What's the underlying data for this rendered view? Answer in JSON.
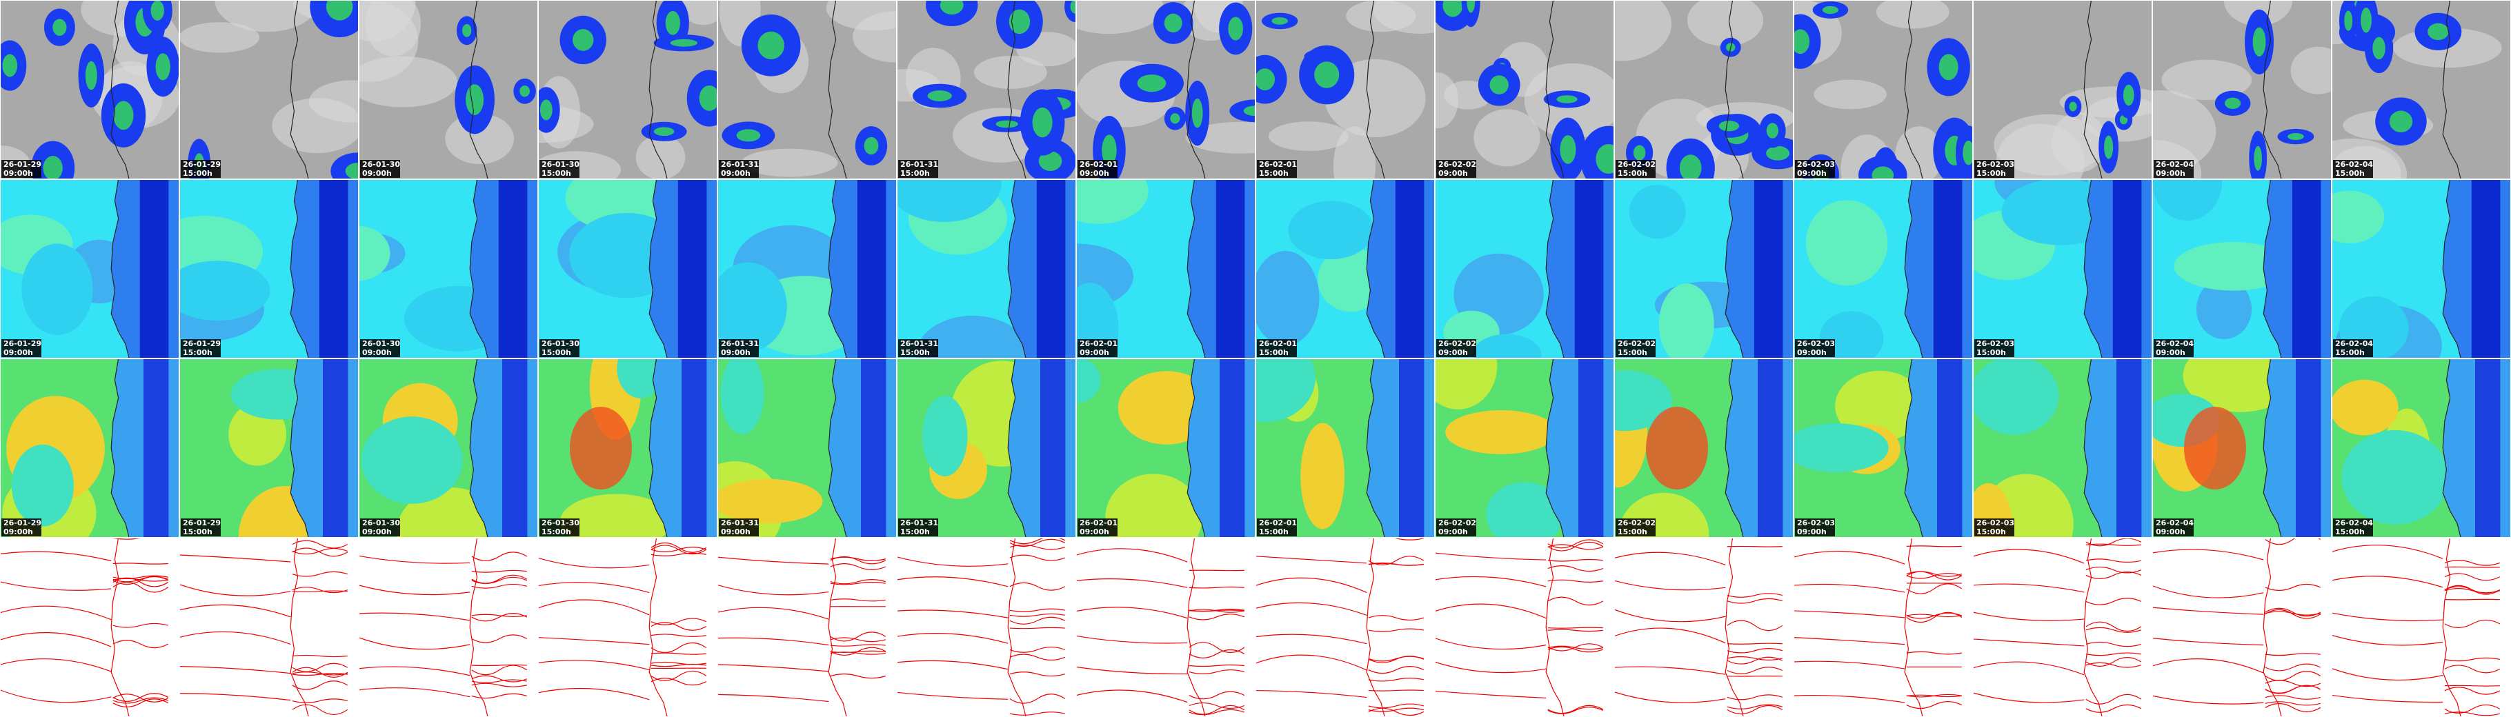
{
  "columns": [
    {
      "date": "26-01-29",
      "time": "09:00h"
    },
    {
      "date": "26-01-29",
      "time": "15:00h"
    },
    {
      "date": "26-01-30",
      "time": "09:00h"
    },
    {
      "date": "26-01-30",
      "time": "15:00h"
    },
    {
      "date": "26-01-31",
      "time": "09:00h"
    },
    {
      "date": "26-01-31",
      "time": "15:00h"
    },
    {
      "date": "26-02-01",
      "time": "09:00h"
    },
    {
      "date": "26-02-01",
      "time": "15:00h"
    },
    {
      "date": "26-02-02",
      "time": "09:00h"
    },
    {
      "date": "26-02-02",
      "time": "15:00h"
    },
    {
      "date": "26-02-03",
      "time": "09:00h"
    },
    {
      "date": "26-02-03",
      "time": "15:00h"
    },
    {
      "date": "26-02-04",
      "time": "09:00h"
    },
    {
      "date": "26-02-04",
      "time": "15:00h"
    }
  ]
}
